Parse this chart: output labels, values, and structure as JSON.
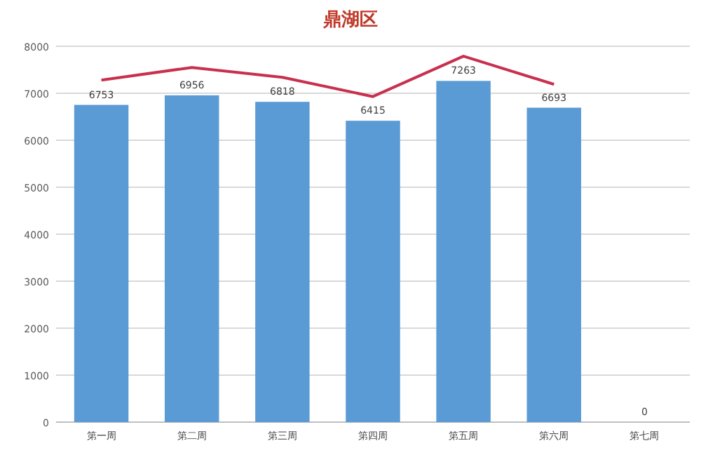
{
  "chart_data": {
    "type": "bar",
    "title": "鼎湖区",
    "categories": [
      "第一周",
      "第二周",
      "第三周",
      "第四周",
      "第五周",
      "第六周",
      "第七周"
    ],
    "series": [
      {
        "type": "bar",
        "color": "#5b9bd5",
        "values": [
          6753,
          6956,
          6818,
          6415,
          7263,
          6693,
          0
        ],
        "data_labels": true
      },
      {
        "type": "line",
        "color": "#c8304e",
        "values": [
          7280,
          7550,
          7340,
          6930,
          7790,
          7190,
          null
        ]
      }
    ],
    "ylim": [
      0,
      8000
    ],
    "yticks": [
      0,
      1000,
      2000,
      3000,
      4000,
      5000,
      6000,
      7000,
      8000
    ],
    "grid": "y",
    "marker": "none",
    "line_style": "solid"
  }
}
